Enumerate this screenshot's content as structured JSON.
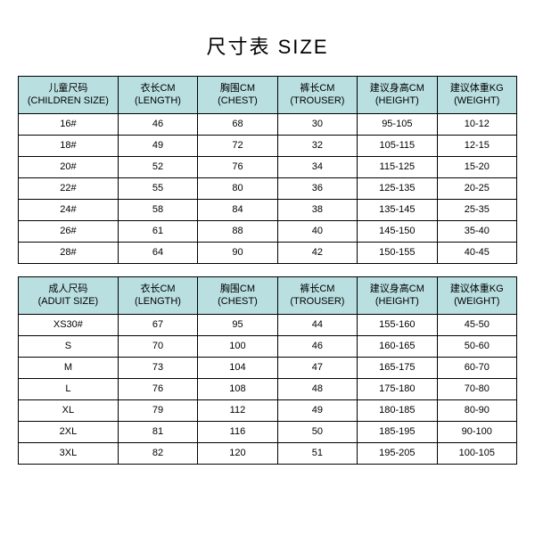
{
  "title": "尺寸表 SIZE",
  "header_bg": "#b9dfe1",
  "text_color": "#000000",
  "tables": [
    {
      "headers": [
        "儿童尺码\n(CHILDREN SIZE)",
        "衣长CM\n(LENGTH)",
        "胸围CM\n(CHEST)",
        "裤长CM\n(TROUSER)",
        "建议身高CM\n(HEIGHT)",
        "建议体重KG\n(WEIGHT)"
      ],
      "rows": [
        [
          "16#",
          "46",
          "68",
          "30",
          "95-105",
          "10-12"
        ],
        [
          "18#",
          "49",
          "72",
          "32",
          "105-115",
          "12-15"
        ],
        [
          "20#",
          "52",
          "76",
          "34",
          "115-125",
          "15-20"
        ],
        [
          "22#",
          "55",
          "80",
          "36",
          "125-135",
          "20-25"
        ],
        [
          "24#",
          "58",
          "84",
          "38",
          "135-145",
          "25-35"
        ],
        [
          "26#",
          "61",
          "88",
          "40",
          "145-150",
          "35-40"
        ],
        [
          "28#",
          "64",
          "90",
          "42",
          "150-155",
          "40-45"
        ]
      ]
    },
    {
      "headers": [
        "成人尺码\n(ADUIT SIZE)",
        "衣长CM\n(LENGTH)",
        "胸围CM\n(CHEST)",
        "裤长CM\n(TROUSER)",
        "建议身高CM\n(HEIGHT)",
        "建议体重KG\n(WEIGHT)"
      ],
      "rows": [
        [
          "XS30#",
          "67",
          "95",
          "44",
          "155-160",
          "45-50"
        ],
        [
          "S",
          "70",
          "100",
          "46",
          "160-165",
          "50-60"
        ],
        [
          "M",
          "73",
          "104",
          "47",
          "165-175",
          "60-70"
        ],
        [
          "L",
          "76",
          "108",
          "48",
          "175-180",
          "70-80"
        ],
        [
          "XL",
          "79",
          "112",
          "49",
          "180-185",
          "80-90"
        ],
        [
          "2XL",
          "81",
          "116",
          "50",
          "185-195",
          "90-100"
        ],
        [
          "3XL",
          "82",
          "120",
          "51",
          "195-205",
          "100-105"
        ]
      ]
    }
  ]
}
